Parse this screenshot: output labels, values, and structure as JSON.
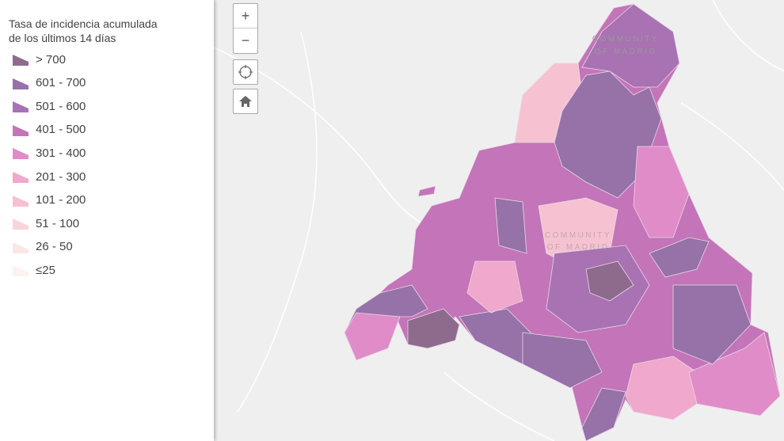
{
  "legend": {
    "title_lines": [
      "Tasa de incidencia acumulada",
      "de los últimos 14 días"
    ],
    "items": [
      {
        "label": "> 700",
        "color": "#8e6b8c"
      },
      {
        "label": "601 - 700",
        "color": "#9672a8"
      },
      {
        "label": "501 - 600",
        "color": "#a872b3"
      },
      {
        "label": "401 - 500",
        "color": "#c474b8"
      },
      {
        "label": "301 - 400",
        "color": "#e08cc8"
      },
      {
        "label": "201 - 300",
        "color": "#f0a8cc"
      },
      {
        "label": "101 - 200",
        "color": "#f6c2d2"
      },
      {
        "label": "51 - 100",
        "color": "#f8d6d8"
      },
      {
        "label": "26 - 50",
        "color": "#fbe6e6"
      },
      {
        "label": "≤25",
        "color": "#fdf2f2"
      }
    ]
  },
  "controls": {
    "zoom_in": "+",
    "zoom_out": "−"
  },
  "map": {
    "region_label": [
      "COMMUNITY",
      "OF MADRID"
    ]
  }
}
